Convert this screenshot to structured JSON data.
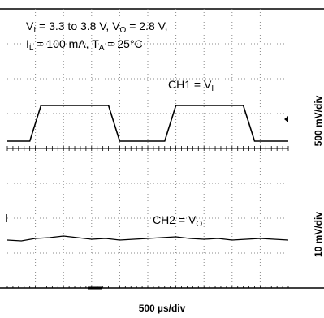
{
  "chart_data": {
    "type": "line",
    "title": "",
    "annotations": {
      "line1": {
        "vi": "V",
        "vi_sub": "I",
        "text1": " = 3.3  to 3.8 V, ",
        "vo": "V",
        "vo_sub": "O",
        "text2": " = 2.8 V,"
      },
      "line2": {
        "il": "I",
        "il_sub": "L",
        "text1": " = 100 mA, ",
        "ta": "T",
        "ta_sub": "A",
        "text2": " = 25°C"
      }
    },
    "x_scale_label": "500  µs/div",
    "x_divisions": 10,
    "y_divisions": 8,
    "grid": true,
    "series": [
      {
        "name_main": "CH1 = V",
        "name_sub": "I",
        "y_scale_label": "500 mV/div",
        "color": "#000000",
        "x": [
          0.0,
          0.6,
          0.8,
          1.2,
          1.4,
          3.4,
          3.6,
          4.0,
          4.2,
          5.4,
          5.6,
          6.0,
          6.2,
          8.2,
          8.4,
          8.8,
          9.0,
          10.0
        ],
        "y": [
          0.0,
          0.0,
          0.0,
          1.0,
          1.0,
          1.0,
          1.0,
          0.0,
          0.0,
          0.0,
          0.0,
          1.0,
          1.0,
          1.0,
          1.0,
          0.0,
          0.0,
          0.0
        ]
      },
      {
        "name_main": "CH2 = V",
        "name_sub": "O",
        "y_scale_label": "10 mV/div",
        "color": "#000000",
        "x": [
          0.0,
          0.5,
          1.0,
          1.5,
          2.0,
          2.5,
          3.0,
          3.5,
          4.0,
          4.5,
          5.0,
          5.5,
          6.0,
          6.5,
          7.0,
          7.5,
          8.0,
          8.5,
          9.0,
          9.5,
          10.0
        ],
        "y": [
          0.0,
          -0.05,
          0.1,
          0.15,
          0.25,
          0.15,
          0.05,
          0.1,
          0.0,
          0.05,
          0.1,
          0.15,
          0.2,
          0.1,
          0.05,
          0.1,
          0.0,
          0.05,
          0.1,
          0.05,
          0.0
        ]
      }
    ]
  }
}
